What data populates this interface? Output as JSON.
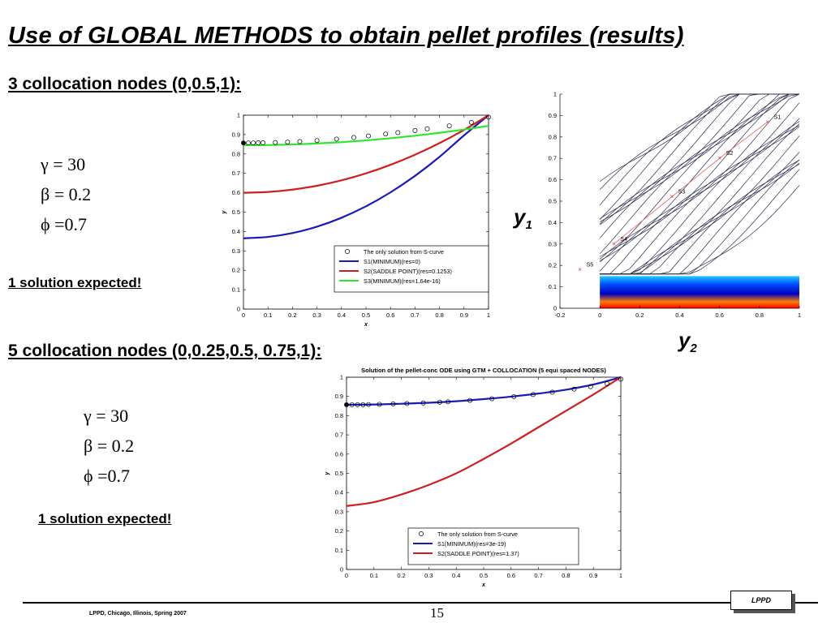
{
  "slide": {
    "title": "Use of GLOBAL METHODS to obtain pellet profiles (results)",
    "section1": "3 collocation nodes (0,0.5,1):",
    "section2": "5 collocation nodes (0,0.25,0.5, 0.75,1):",
    "params1": [
      "γ = 30",
      "β = 0.2",
      "ϕ =0.7"
    ],
    "params2": [
      "γ = 30",
      "β = 0.2",
      "ϕ =0.7"
    ],
    "note1": "1 solution expected!",
    "note2": "1 solution expected!",
    "y1_label": "y",
    "y1_sub": "1",
    "y2_label": "y",
    "y2_sub": "2",
    "footer": "LPPD, Chicago, Illinois, Spring 2007",
    "page_number": "15",
    "logo": "LPPD"
  },
  "colors": {
    "blue": "#1a1ab4",
    "red": "#cc1f1f",
    "green": "#2ee62e"
  },
  "chart_data": [
    {
      "type": "line",
      "title": "",
      "xlabel": "x",
      "ylabel": "y",
      "xlim": [
        0,
        1
      ],
      "ylim": [
        0,
        1
      ],
      "xticks": [
        "0",
        "0.1",
        "0.2",
        "0.3",
        "0.4",
        "0.5",
        "0.6",
        "0.7",
        "0.8",
        "0.9",
        "1"
      ],
      "yticks": [
        "0",
        "0.1",
        "0.2",
        "0.3",
        "0.4",
        "0.5",
        "0.6",
        "0.7",
        "0.8",
        "0.9",
        "1"
      ],
      "legend": "bottom-right",
      "markers": {
        "name": "The only solution from S-curve",
        "x": [
          0,
          0.02,
          0.04,
          0.06,
          0.08,
          0.13,
          0.18,
          0.23,
          0.3,
          0.38,
          0.45,
          0.51,
          0.58,
          0.63,
          0.7,
          0.75,
          0.84,
          0.93,
          1
        ],
        "y": [
          0.857,
          0.857,
          0.857,
          0.858,
          0.858,
          0.859,
          0.861,
          0.864,
          0.869,
          0.877,
          0.885,
          0.893,
          0.903,
          0.91,
          0.921,
          0.93,
          0.945,
          0.963,
          0.99
        ]
      },
      "series": [
        {
          "name": "S1(MINIMUM)(res=0)",
          "color": "#1a1ab4",
          "x": [
            0,
            0.1,
            0.2,
            0.3,
            0.4,
            0.5,
            0.6,
            0.7,
            0.8,
            0.9,
            1
          ],
          "y": [
            0.365,
            0.372,
            0.392,
            0.425,
            0.471,
            0.53,
            0.602,
            0.687,
            0.785,
            0.896,
            1.0
          ]
        },
        {
          "name": "S2(SADDLE POINT)(res=0.1253)",
          "color": "#cc1f1f",
          "x": [
            0,
            0.1,
            0.2,
            0.3,
            0.4,
            0.5,
            0.6,
            0.7,
            0.8,
            0.9,
            1
          ],
          "y": [
            0.6,
            0.604,
            0.616,
            0.636,
            0.664,
            0.7,
            0.744,
            0.796,
            0.856,
            0.924,
            1.0
          ]
        },
        {
          "name": "S3(MINIMUM)(res=1.64e-16)",
          "color": "#2ee62e",
          "x": [
            0,
            0.1,
            0.2,
            0.3,
            0.4,
            0.5,
            0.6,
            0.7,
            0.8,
            0.9,
            1
          ],
          "y": [
            0.845,
            0.846,
            0.849,
            0.854,
            0.861,
            0.87,
            0.881,
            0.894,
            0.909,
            0.926,
            0.945
          ]
        }
      ]
    },
    {
      "type": "line",
      "title": "Solution of the pellet-conc ODE using GTM + COLLOCATION (5 equi spaced NODES)",
      "xlabel": "x",
      "ylabel": "y",
      "xlim": [
        0,
        1
      ],
      "ylim": [
        0,
        1
      ],
      "xticks": [
        "0",
        "0.1",
        "0.2",
        "0.3",
        "0.4",
        "0.5",
        "0.6",
        "0.7",
        "0.8",
        "0.9",
        "1"
      ],
      "yticks": [
        "0",
        "0.1",
        "0.2",
        "0.3",
        "0.4",
        "0.5",
        "0.6",
        "0.7",
        "0.8",
        "0.9",
        "1"
      ],
      "legend": "bottom-right",
      "markers": {
        "name": "The only solution from S-curve",
        "x": [
          0,
          0.02,
          0.04,
          0.06,
          0.08,
          0.12,
          0.17,
          0.22,
          0.28,
          0.34,
          0.37,
          0.45,
          0.53,
          0.61,
          0.68,
          0.75,
          0.83,
          0.89,
          0.95,
          1
        ],
        "y": [
          0.857,
          0.857,
          0.857,
          0.857,
          0.858,
          0.859,
          0.861,
          0.863,
          0.866,
          0.87,
          0.872,
          0.879,
          0.888,
          0.899,
          0.91,
          0.922,
          0.938,
          0.951,
          0.966,
          0.99
        ]
      },
      "series": [
        {
          "name": "S1(MINIMUM)(res=3e-19)",
          "color": "#1a1ab4",
          "x": [
            0,
            0.1,
            0.2,
            0.3,
            0.4,
            0.5,
            0.6,
            0.7,
            0.8,
            0.9,
            1
          ],
          "y": [
            0.857,
            0.858,
            0.862,
            0.867,
            0.875,
            0.886,
            0.899,
            0.915,
            0.935,
            0.962,
            1.0
          ]
        },
        {
          "name": "S2(SADDLE POINT)(res=1.37)",
          "color": "#cc1f1f",
          "x": [
            0,
            0.1,
            0.2,
            0.3,
            0.4,
            0.5,
            0.6,
            0.7,
            0.8,
            0.9,
            1
          ],
          "y": [
            0.33,
            0.35,
            0.39,
            0.44,
            0.5,
            0.575,
            0.655,
            0.74,
            0.825,
            0.91,
            1.0
          ]
        }
      ]
    },
    {
      "type": "contour",
      "title": "",
      "xlabel": "",
      "ylabel": "",
      "xlim": [
        -0.2,
        1
      ],
      "ylim": [
        0,
        1
      ],
      "xticks": [
        "-0.2",
        "0",
        "0.2",
        "0.4",
        "0.6",
        "0.8",
        "1"
      ],
      "yticks": [
        "0",
        "0.1",
        "0.2",
        "0.3",
        "0.4",
        "0.5",
        "0.6",
        "0.7",
        "0.8",
        "0.9",
        "1"
      ],
      "points": [
        {
          "name": "S1",
          "x": 0.84,
          "y": 0.87
        },
        {
          "name": "S2",
          "x": 0.6,
          "y": 0.7
        },
        {
          "name": "S3",
          "x": 0.36,
          "y": 0.52
        },
        {
          "name": "S4",
          "x": 0.07,
          "y": 0.3
        },
        {
          "name": "S5",
          "x": -0.1,
          "y": 0.18
        }
      ]
    }
  ]
}
